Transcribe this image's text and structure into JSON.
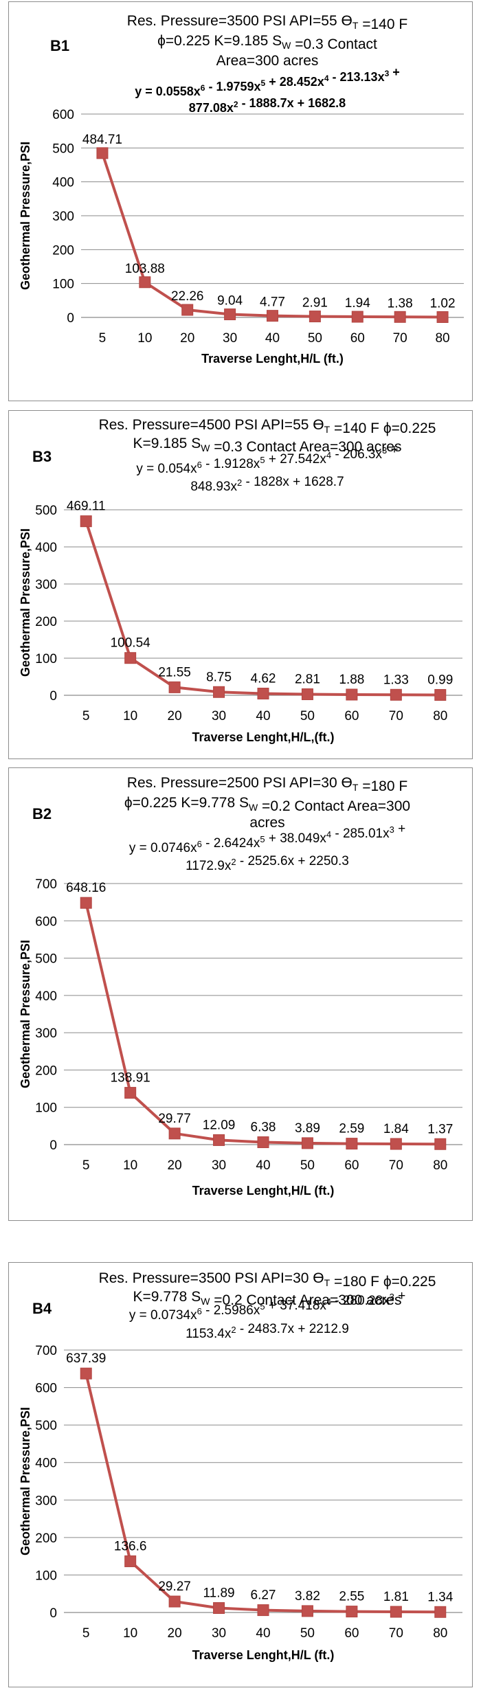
{
  "chart_data": [
    {
      "type": "line",
      "panel_id": "B1",
      "title_lines": [
        [
          {
            "t": "Res. Pressure=3500 PSI API=55 "
          },
          {
            "t": "ϴ"
          },
          {
            "t": "T",
            "sub": true
          },
          {
            "t": " =140 F"
          }
        ],
        [
          {
            "t": "ϕ=0.225 K=9.185  S"
          },
          {
            "t": "W",
            "sub": true
          },
          {
            "t": " =0.3 Contact"
          }
        ],
        [
          {
            "t": "Area=300 acres"
          }
        ]
      ],
      "equation_bold": true,
      "equation_lines": [
        [
          {
            "t": "y = 0.0558x"
          },
          {
            "t": "6",
            "sup": true
          },
          {
            "t": " - 1.9759x"
          },
          {
            "t": "5",
            "sup": true
          },
          {
            "t": " + 28.452x"
          },
          {
            "t": "4",
            "sup": true
          },
          {
            "t": " - 213.13x"
          },
          {
            "t": "3",
            "sup": true
          },
          {
            "t": " +"
          }
        ],
        [
          {
            "t": "877.08x"
          },
          {
            "t": "2",
            "sup": true
          },
          {
            "t": " - 1888.7x + 1682.8"
          }
        ]
      ],
      "xlabel": "Traverse Lenght,H/L (ft.)",
      "ylabel": "Geothermal Pressure,PSI",
      "categories": [
        "5",
        "10",
        "20",
        "30",
        "40",
        "50",
        "60",
        "70",
        "80"
      ],
      "values": [
        484.71,
        103.88,
        22.26,
        9.04,
        4.77,
        2.91,
        1.94,
        1.38,
        1.02
      ],
      "data_labels": [
        "484.71",
        "103.88",
        "22.26",
        "9.04",
        "4.77",
        "2.91",
        "1.94",
        "1.38",
        "1.02"
      ],
      "ylim": [
        0,
        600
      ],
      "yticks": [
        0,
        100,
        200,
        300,
        400,
        500,
        600
      ],
      "grid": true,
      "legend": "none",
      "color": "#c0504d"
    },
    {
      "type": "line",
      "panel_id": "B3",
      "title_lines": [
        [
          {
            "t": "Res. Pressure=4500 PSI API=55 "
          },
          {
            "t": "ϴ"
          },
          {
            "t": "T",
            "sub": true
          },
          {
            "t": " =140 F ϕ=0.225"
          }
        ],
        [
          {
            "t": "K=9.185        S"
          },
          {
            "t": "W",
            "sub": true
          },
          {
            "t": " =0.3 Contact Area=300 acres"
          }
        ]
      ],
      "equation_bold": false,
      "equation_lines": [
        [
          {
            "t": "y = 0.054x"
          },
          {
            "t": "6",
            "sup": true
          },
          {
            "t": " - 1.9128x"
          },
          {
            "t": "5",
            "sup": true
          },
          {
            "t": " + 27.542x"
          },
          {
            "t": "4",
            "sup": true
          },
          {
            "t": " - 206.3x"
          },
          {
            "t": "3",
            "sup": true
          },
          {
            "t": " +"
          }
        ],
        [
          {
            "t": "848.93x"
          },
          {
            "t": "2",
            "sup": true
          },
          {
            "t": " - 1828x + 1628.7"
          }
        ]
      ],
      "xlabel": "Traverse Lenght,H/L,(ft.)",
      "ylabel": "Geothermal Pressure,PSI",
      "categories": [
        "5",
        "10",
        "20",
        "30",
        "40",
        "50",
        "60",
        "70",
        "80"
      ],
      "values": [
        469.11,
        100.54,
        21.55,
        8.75,
        4.62,
        2.81,
        1.88,
        1.33,
        0.99
      ],
      "data_labels": [
        "469.11",
        "100.54",
        "21.55",
        "8.75",
        "4.62",
        "2.81",
        "1.88",
        "1.33",
        "0.99"
      ],
      "ylim": [
        0,
        500
      ],
      "yticks": [
        0,
        100,
        200,
        300,
        400,
        500
      ],
      "grid": true,
      "legend": "none",
      "color": "#c0504d"
    },
    {
      "type": "line",
      "panel_id": "B2",
      "title_lines": [
        [
          {
            "t": "Res. Pressure=2500 PSI API=30 "
          },
          {
            "t": "ϴ"
          },
          {
            "t": "T",
            "sub": true
          },
          {
            "t": " =180 F"
          }
        ],
        [
          {
            "t": "ϕ=0.225 K=9.778 S"
          },
          {
            "t": "W",
            "sub": true
          },
          {
            "t": " =0.2 Contact Area=300"
          }
        ],
        [
          {
            "t": "acres"
          }
        ]
      ],
      "equation_bold": false,
      "equation_lines": [
        [
          {
            "t": "y = 0.0746x"
          },
          {
            "t": "6",
            "sup": true
          },
          {
            "t": " - 2.6424x"
          },
          {
            "t": "5",
            "sup": true
          },
          {
            "t": " + 38.049x"
          },
          {
            "t": "4",
            "sup": true
          },
          {
            "t": " - 285.01x"
          },
          {
            "t": "3",
            "sup": true
          },
          {
            "t": " +"
          }
        ],
        [
          {
            "t": "1172.9x"
          },
          {
            "t": "2",
            "sup": true
          },
          {
            "t": " - 2525.6x + 2250.3"
          }
        ]
      ],
      "xlabel": "Traverse Lenght,H/L (ft.)",
      "ylabel": "Geothermal Pressure,PSI",
      "categories": [
        "5",
        "10",
        "20",
        "30",
        "40",
        "50",
        "60",
        "70",
        "80"
      ],
      "values": [
        648.16,
        138.91,
        29.77,
        12.09,
        6.38,
        3.89,
        2.59,
        1.84,
        1.37
      ],
      "data_labels": [
        "648.16",
        "138.91",
        "29.77",
        "12.09",
        "6.38",
        "3.89",
        "2.59",
        "1.84",
        "1.37"
      ],
      "ylim": [
        0,
        700
      ],
      "yticks": [
        0,
        100,
        200,
        300,
        400,
        500,
        600,
        700
      ],
      "grid": true,
      "legend": "none",
      "color": "#c0504d"
    },
    {
      "type": "line",
      "panel_id": "B4",
      "title_lines": [
        [
          {
            "t": "Res. Pressure=3500 PSI API=30 "
          },
          {
            "t": "ϴ"
          },
          {
            "t": "T",
            "sub": true
          },
          {
            "t": " =180 F ϕ=0.225"
          }
        ],
        [
          {
            "t": "K=9.778 S"
          },
          {
            "t": "W",
            "sub": true
          },
          {
            "t": " =0.2 Contact Area=300 acres"
          }
        ]
      ],
      "equation_bold": false,
      "equation_lines": [
        [
          {
            "t": "y = 0.0734x"
          },
          {
            "t": "6",
            "sup": true
          },
          {
            "t": " - 2.5986x"
          },
          {
            "t": "5",
            "sup": true
          },
          {
            "t": " + 37.418x"
          },
          {
            "t": "4",
            "sup": true
          },
          {
            "t": " - 280.28x"
          },
          {
            "t": "3",
            "sup": true
          },
          {
            "t": " +"
          }
        ],
        [
          {
            "t": "1153.4x"
          },
          {
            "t": "2",
            "sup": true
          },
          {
            "t": " - 2483.7x + 2212.9"
          }
        ]
      ],
      "xlabel": "Traverse Lenght,H/L (ft.)",
      "ylabel": "Geothermal Pressure,PSI",
      "categories": [
        "5",
        "10",
        "20",
        "30",
        "40",
        "50",
        "60",
        "70",
        "80"
      ],
      "values": [
        637.39,
        136.6,
        29.27,
        11.89,
        6.27,
        3.82,
        2.55,
        1.81,
        1.34
      ],
      "data_labels": [
        "637.39",
        "136.6",
        "29.27",
        "11.89",
        "6.27",
        "3.82",
        "2.55",
        "1.81",
        "1.34"
      ],
      "ylim": [
        0,
        700
      ],
      "yticks": [
        0,
        100,
        200,
        300,
        400,
        500,
        600,
        700
      ],
      "grid": true,
      "legend": "none",
      "color": "#c0504d"
    }
  ]
}
